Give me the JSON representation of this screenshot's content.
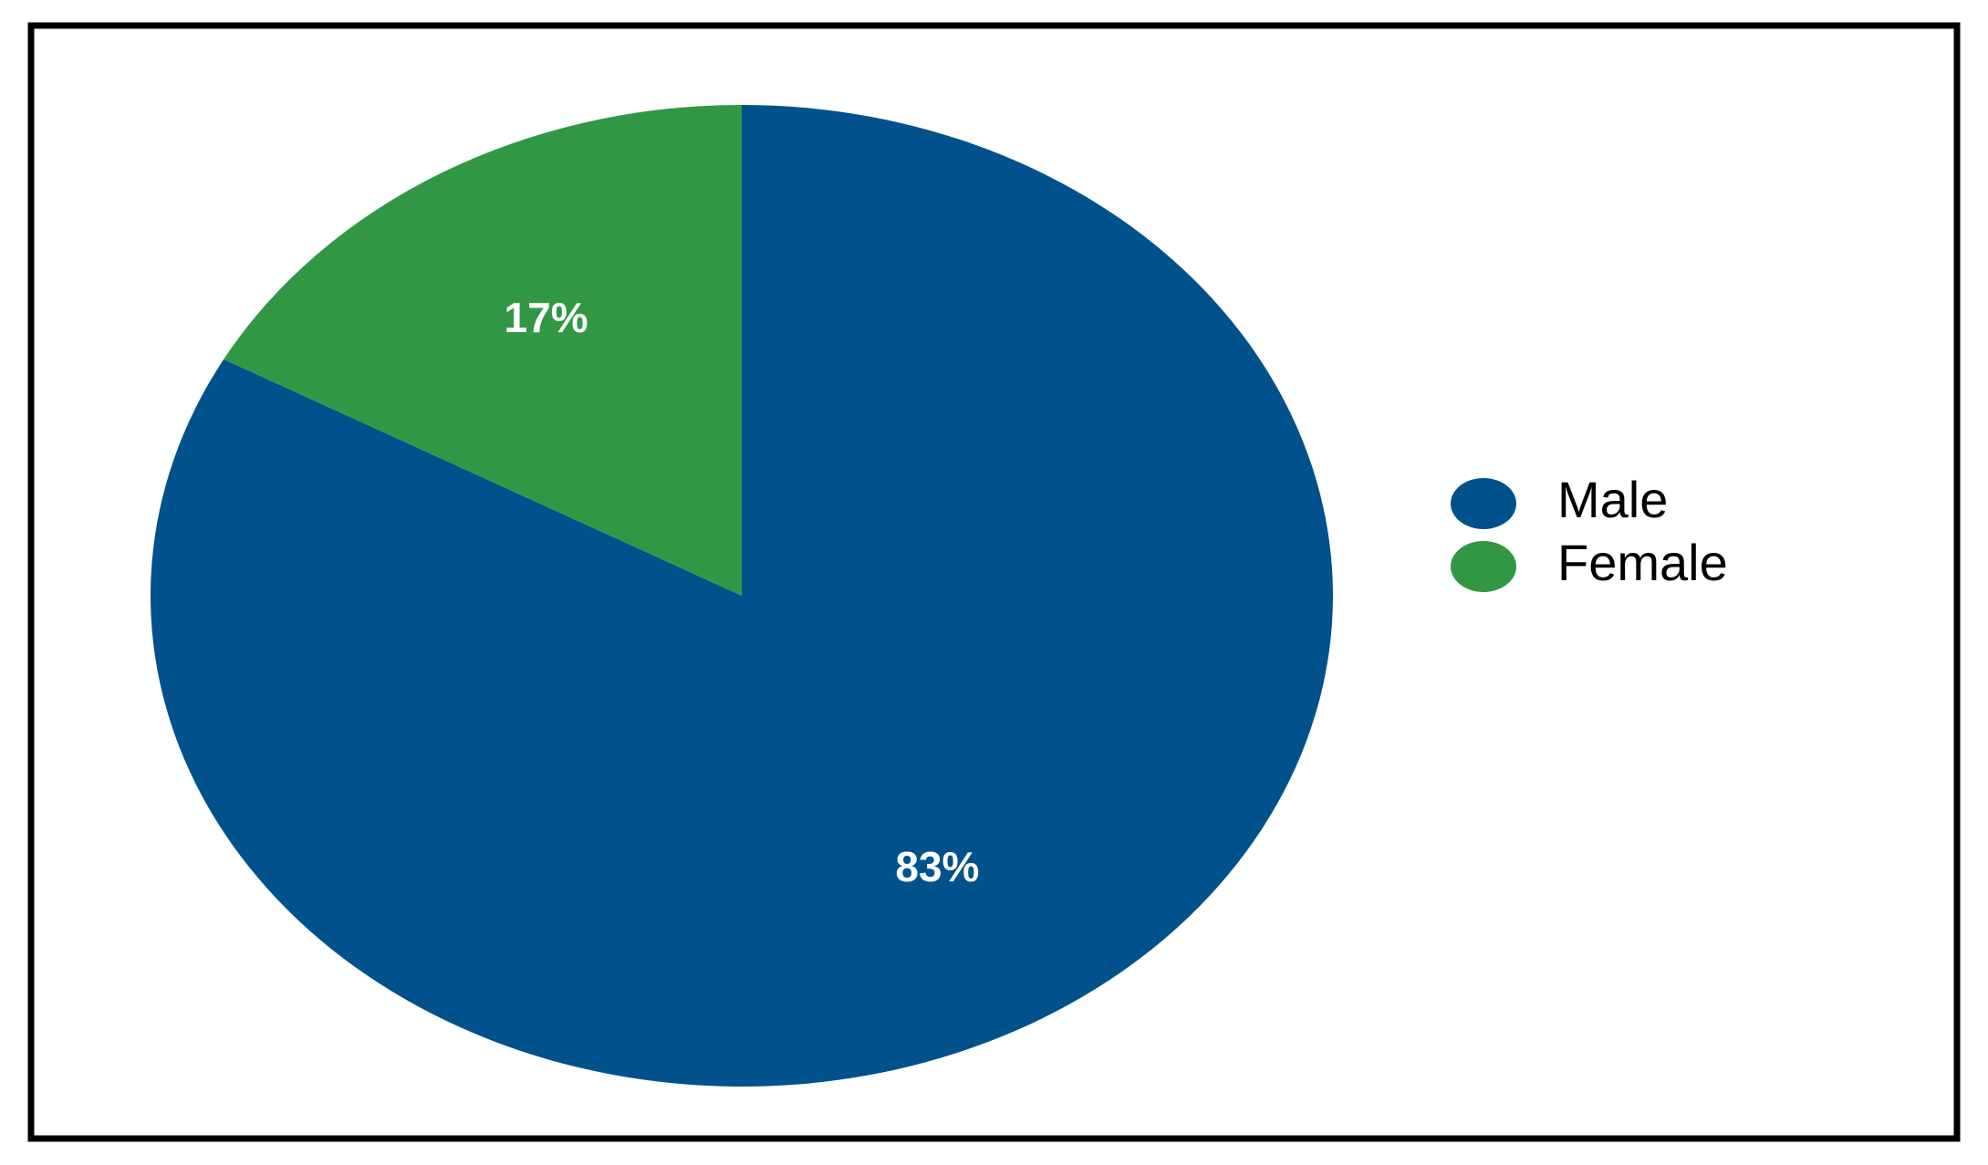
{
  "chart_data": {
    "type": "pie",
    "series": [
      {
        "name": "Male",
        "color": "#01528c",
        "values": [
          83
        ],
        "value_labels": [
          "83%"
        ]
      },
      {
        "name": "Female",
        "color": "#319745",
        "values": [
          17
        ],
        "value_labels": [
          "17%"
        ]
      }
    ]
  }
}
